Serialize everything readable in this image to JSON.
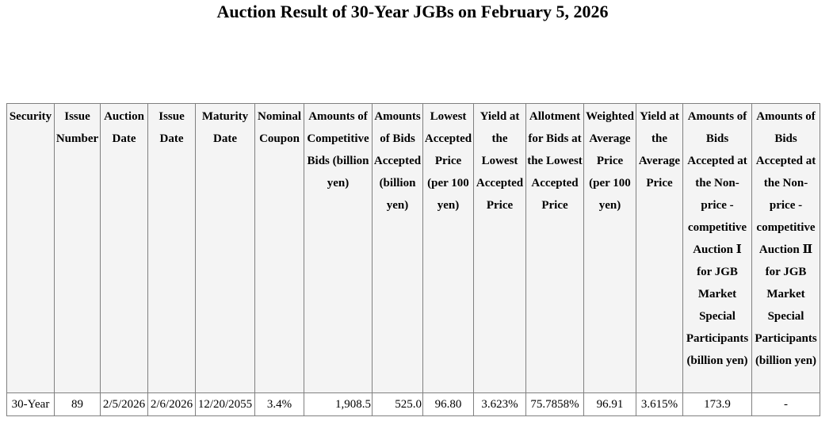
{
  "title": "Auction Result of 30-Year JGBs on February 5, 2026",
  "table": {
    "headers": [
      "Security",
      "Issue Number",
      "Auction Date",
      "Issue Date",
      "Maturity Date",
      "Nominal Coupon",
      "Amounts of Competitive Bids (billion yen)",
      "Amounts of Bids Accepted (billion yen)",
      "Lowest Accepted Price (per 100 yen)",
      "Yield at the Lowest Accepted Price",
      "Allotment for Bids at the Lowest Accepted Price",
      "Weighted Average Price (per 100 yen)",
      "Yield at the Average Price",
      "Amounts of Bids Accepted at the Non-price - competitive Auction Ⅰ for JGB Market Special Participants (billion yen)",
      "Amounts of Bids Accepted at the Non-price - competitive Auction Ⅱ for JGB Market Special Participants (billion yen)"
    ],
    "rows": [
      [
        "30-Year",
        "89",
        "2/5/2026",
        "2/6/2026",
        "12/20/2055",
        "3.4%",
        "1,908.5",
        "525.0",
        "96.80",
        "3.623%",
        "75.7858%",
        "96.91",
        "3.615%",
        "173.9",
        "-"
      ]
    ]
  }
}
